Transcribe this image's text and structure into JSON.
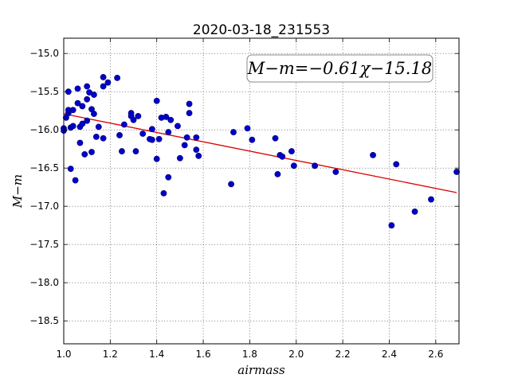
{
  "chart_data": {
    "type": "scatter",
    "title": "2020-03-18_231553",
    "xlabel": "airmass",
    "ylabel": "M−m",
    "xlim": [
      1.0,
      2.7
    ],
    "ylim": [
      -18.8,
      -14.8
    ],
    "y_inverted": true,
    "grid": true,
    "x_ticks": [
      1.0,
      1.2,
      1.4,
      1.6,
      1.8,
      2.0,
      2.2,
      2.4,
      2.6
    ],
    "x_tick_labels": [
      "1.0",
      "1.2",
      "1.4",
      "1.6",
      "1.8",
      "2.0",
      "2.2",
      "2.4",
      "2.6"
    ],
    "y_ticks": [
      -15.0,
      -15.5,
      -16.0,
      -16.5,
      -17.0,
      -17.5,
      -18.0,
      -18.5
    ],
    "y_tick_labels": [
      "−15.0",
      "−15.5",
      "−16.0",
      "−16.5",
      "−17.0",
      "−17.5",
      "−18.0",
      "−18.5"
    ],
    "annotation": "M−m=−0.61χ−15.18",
    "marker_color": "#0000cc",
    "fit_color": "#dd0000",
    "fit": {
      "slope": -0.61,
      "intercept": -15.18,
      "x_range": [
        1.0,
        2.69
      ]
    },
    "points": [
      [
        1.0,
        -15.98
      ],
      [
        1.0,
        -16.01
      ],
      [
        1.01,
        -15.84
      ],
      [
        1.02,
        -15.78
      ],
      [
        1.02,
        -15.5
      ],
      [
        1.02,
        -15.74
      ],
      [
        1.03,
        -16.51
      ],
      [
        1.03,
        -15.97
      ],
      [
        1.04,
        -15.74
      ],
      [
        1.04,
        -15.95
      ],
      [
        1.05,
        -16.66
      ],
      [
        1.06,
        -15.46
      ],
      [
        1.06,
        -15.65
      ],
      [
        1.07,
        -16.17
      ],
      [
        1.07,
        -15.96
      ],
      [
        1.08,
        -15.92
      ],
      [
        1.08,
        -15.69
      ],
      [
        1.09,
        -16.32
      ],
      [
        1.1,
        -15.43
      ],
      [
        1.1,
        -15.6
      ],
      [
        1.1,
        -15.88
      ],
      [
        1.11,
        -15.51
      ],
      [
        1.12,
        -16.29
      ],
      [
        1.12,
        -15.73
      ],
      [
        1.13,
        -15.54
      ],
      [
        1.13,
        -15.79
      ],
      [
        1.14,
        -16.09
      ],
      [
        1.15,
        -15.96
      ],
      [
        1.17,
        -15.43
      ],
      [
        1.17,
        -15.31
      ],
      [
        1.17,
        -16.11
      ],
      [
        1.19,
        -15.38
      ],
      [
        1.23,
        -15.32
      ],
      [
        1.24,
        -16.07
      ],
      [
        1.25,
        -16.28
      ],
      [
        1.26,
        -15.93
      ],
      [
        1.29,
        -15.78
      ],
      [
        1.29,
        -15.82
      ],
      [
        1.3,
        -15.87
      ],
      [
        1.31,
        -16.28
      ],
      [
        1.32,
        -15.82
      ],
      [
        1.34,
        -16.05
      ],
      [
        1.37,
        -16.12
      ],
      [
        1.38,
        -16.13
      ],
      [
        1.38,
        -15.99
      ],
      [
        1.4,
        -15.62
      ],
      [
        1.4,
        -16.38
      ],
      [
        1.41,
        -16.12
      ],
      [
        1.42,
        -15.84
      ],
      [
        1.43,
        -16.83
      ],
      [
        1.44,
        -15.83
      ],
      [
        1.45,
        -16.03
      ],
      [
        1.45,
        -16.62
      ],
      [
        1.46,
        -15.87
      ],
      [
        1.49,
        -15.95
      ],
      [
        1.5,
        -16.37
      ],
      [
        1.52,
        -16.2
      ],
      [
        1.53,
        -16.1
      ],
      [
        1.54,
        -15.66
      ],
      [
        1.54,
        -15.78
      ],
      [
        1.57,
        -16.26
      ],
      [
        1.57,
        -16.1
      ],
      [
        1.58,
        -16.34
      ],
      [
        1.72,
        -16.71
      ],
      [
        1.73,
        -16.03
      ],
      [
        1.79,
        -15.98
      ],
      [
        1.81,
        -16.13
      ],
      [
        1.91,
        -16.11
      ],
      [
        1.92,
        -16.58
      ],
      [
        1.93,
        -16.33
      ],
      [
        1.94,
        -16.35
      ],
      [
        1.98,
        -16.28
      ],
      [
        1.99,
        -16.47
      ],
      [
        2.08,
        -16.47
      ],
      [
        2.17,
        -16.55
      ],
      [
        2.33,
        -16.33
      ],
      [
        2.41,
        -17.25
      ],
      [
        2.43,
        -16.45
      ],
      [
        2.51,
        -17.07
      ],
      [
        2.58,
        -16.91
      ],
      [
        2.69,
        -16.55
      ]
    ]
  }
}
